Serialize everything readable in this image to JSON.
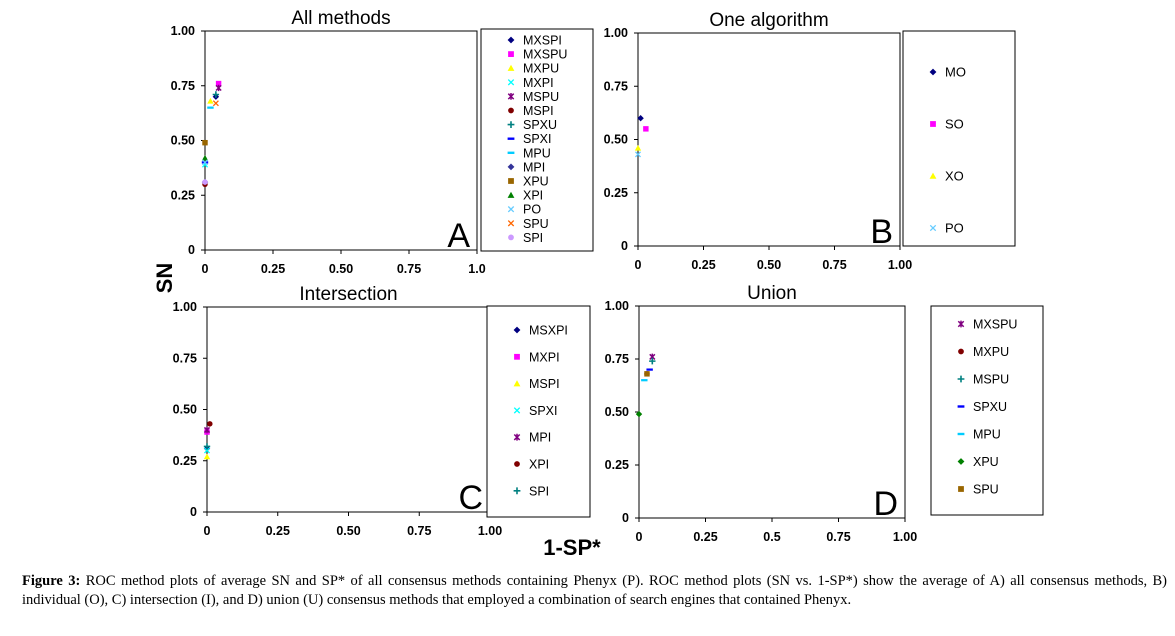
{
  "figure": {
    "shared_y_label": "SN",
    "shared_x_label": "1-SP*"
  },
  "caption": {
    "lead": "Figure 3:",
    "text": "ROC method plots of average SN and SP* of all consensus methods containing Phenyx (P). ROC method plots (SN vs. 1-SP*) show  the average of A) all consensus methods, B) individual (O), C) intersection (I), and D) union (U) consensus methods that employed a combination of search engines that contained Phenyx."
  },
  "chart_data": [
    {
      "type": "scatter",
      "id": "A",
      "title": "All methods",
      "panel_letter": "A",
      "xlim": [
        0,
        1
      ],
      "ylim": [
        0,
        1
      ],
      "xticks": [
        "0",
        "0.25",
        "0.50",
        "0.75",
        "1.0"
      ],
      "yticks": [
        "0",
        "0.25",
        "0.50",
        "0.75",
        "1.00"
      ],
      "legend_position": "right",
      "series": [
        {
          "name": "MXSPI",
          "color": "#000080",
          "marker": "diamond",
          "x": [
            0.04
          ],
          "y": [
            0.7
          ]
        },
        {
          "name": "MXSPU",
          "color": "#ff00ff",
          "marker": "square",
          "x": [
            0.05
          ],
          "y": [
            0.76
          ]
        },
        {
          "name": "MXPU",
          "color": "#ffff00",
          "marker": "triangle",
          "x": [
            0.02
          ],
          "y": [
            0.68
          ]
        },
        {
          "name": "MXPI",
          "color": "#00ffff",
          "marker": "x",
          "x": [
            0.0
          ],
          "y": [
            0.39
          ]
        },
        {
          "name": "MSPU",
          "color": "#800080",
          "marker": "star",
          "x": [
            0.05
          ],
          "y": [
            0.74
          ]
        },
        {
          "name": "MSPI",
          "color": "#800000",
          "marker": "circle",
          "x": [
            0.0
          ],
          "y": [
            0.3
          ]
        },
        {
          "name": "SPXU",
          "color": "#008080",
          "marker": "plus",
          "x": [
            0.04
          ],
          "y": [
            0.71
          ]
        },
        {
          "name": "SPXI",
          "color": "#0000ff",
          "marker": "dash",
          "x": [
            0.0
          ],
          "y": [
            0.4
          ]
        },
        {
          "name": "MPU",
          "color": "#00ccff",
          "marker": "dash",
          "x": [
            0.02
          ],
          "y": [
            0.65
          ]
        },
        {
          "name": "MPI",
          "color": "#333399",
          "marker": "diamond",
          "x": [
            0.0
          ],
          "y": [
            0.31
          ]
        },
        {
          "name": "XPU",
          "color": "#996600",
          "marker": "square",
          "x": [
            0.0
          ],
          "y": [
            0.49
          ]
        },
        {
          "name": "XPI",
          "color": "#008000",
          "marker": "triangle",
          "x": [
            0.0
          ],
          "y": [
            0.42
          ]
        },
        {
          "name": "PO",
          "color": "#66ccff",
          "marker": "x",
          "x": [
            0.0
          ],
          "y": [
            0.4
          ]
        },
        {
          "name": "SPU",
          "color": "#ff6600",
          "marker": "x",
          "x": [
            0.04
          ],
          "y": [
            0.67
          ]
        },
        {
          "name": "SPI",
          "color": "#cc99ff",
          "marker": "circle",
          "x": [
            0.0
          ],
          "y": [
            0.31
          ]
        }
      ]
    },
    {
      "type": "scatter",
      "id": "B",
      "title": "One algorithm",
      "panel_letter": "B",
      "xlim": [
        0,
        1
      ],
      "ylim": [
        0,
        1
      ],
      "xticks": [
        "0",
        "0.25",
        "0.50",
        "0.75",
        "1.00"
      ],
      "yticks": [
        "0",
        "0.25",
        "0.50",
        "0.75",
        "1.00"
      ],
      "legend_position": "right",
      "series": [
        {
          "name": "MO",
          "color": "#000080",
          "marker": "diamond",
          "x": [
            0.01
          ],
          "y": [
            0.6
          ]
        },
        {
          "name": "SO",
          "color": "#ff00ff",
          "marker": "square",
          "x": [
            0.03
          ],
          "y": [
            0.55
          ]
        },
        {
          "name": "XO",
          "color": "#ffff00",
          "marker": "triangle",
          "x": [
            0.0
          ],
          "y": [
            0.46
          ]
        },
        {
          "name": "PO",
          "color": "#66ccff",
          "marker": "x",
          "x": [
            0.0
          ],
          "y": [
            0.43
          ]
        }
      ]
    },
    {
      "type": "scatter",
      "id": "C",
      "title": "Intersection",
      "panel_letter": "C",
      "xlim": [
        0,
        1
      ],
      "ylim": [
        0,
        1
      ],
      "xticks": [
        "0",
        "0.25",
        "0.50",
        "0.75",
        "1.00"
      ],
      "yticks": [
        "0",
        "0.25",
        "0.50",
        "0.75",
        "1.00"
      ],
      "legend_position": "right",
      "series": [
        {
          "name": "MSXPI",
          "color": "#000080",
          "marker": "diamond",
          "x": [
            0.0
          ],
          "y": [
            0.31
          ]
        },
        {
          "name": "MXPI",
          "color": "#ff00ff",
          "marker": "square",
          "x": [
            0.0
          ],
          "y": [
            0.39
          ]
        },
        {
          "name": "MSPI",
          "color": "#ffff00",
          "marker": "triangle",
          "x": [
            0.0
          ],
          "y": [
            0.27
          ]
        },
        {
          "name": "SPXI",
          "color": "#00ffff",
          "marker": "x",
          "x": [
            0.0
          ],
          "y": [
            0.3
          ]
        },
        {
          "name": "MPI",
          "color": "#800080",
          "marker": "star",
          "x": [
            0.0
          ],
          "y": [
            0.4
          ]
        },
        {
          "name": "XPI",
          "color": "#800000",
          "marker": "circle",
          "x": [
            0.01
          ],
          "y": [
            0.43
          ]
        },
        {
          "name": "SPI",
          "color": "#008080",
          "marker": "plus",
          "x": [
            0.0
          ],
          "y": [
            0.32
          ]
        }
      ]
    },
    {
      "type": "scatter",
      "id": "D",
      "title": "Union",
      "panel_letter": "D",
      "xlim": [
        0,
        1
      ],
      "ylim": [
        0,
        1
      ],
      "xticks": [
        "0",
        "0.25",
        "0.5",
        "0.75",
        "1.00"
      ],
      "yticks": [
        "0",
        "0.25",
        "0.50",
        "0.75",
        "1.00"
      ],
      "legend_position": "right",
      "series": [
        {
          "name": "MXSPU",
          "color": "#800080",
          "marker": "star",
          "x": [
            0.05
          ],
          "y": [
            0.76
          ]
        },
        {
          "name": "MXPU",
          "color": "#800000",
          "marker": "circle",
          "x": [
            0.03
          ],
          "y": [
            0.68
          ]
        },
        {
          "name": "MSPU",
          "color": "#008080",
          "marker": "plus",
          "x": [
            0.05
          ],
          "y": [
            0.74
          ]
        },
        {
          "name": "SPXU",
          "color": "#0000ff",
          "marker": "dash",
          "x": [
            0.04
          ],
          "y": [
            0.7
          ]
        },
        {
          "name": "MPU",
          "color": "#00ccff",
          "marker": "dash",
          "x": [
            0.02
          ],
          "y": [
            0.65
          ]
        },
        {
          "name": "XPU",
          "color": "#008000",
          "marker": "diamond",
          "x": [
            0.0
          ],
          "y": [
            0.49
          ]
        },
        {
          "name": "SPU",
          "color": "#996600",
          "marker": "square",
          "x": [
            0.03
          ],
          "y": [
            0.68
          ]
        }
      ]
    }
  ]
}
